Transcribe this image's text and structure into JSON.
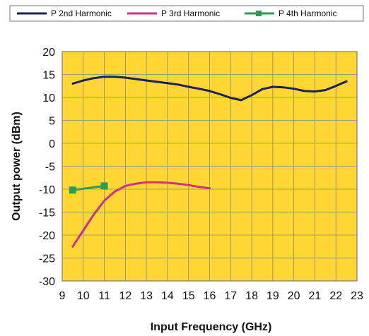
{
  "chart_data": {
    "type": "line",
    "title": "",
    "xlabel": "Input Frequency (GHz)",
    "ylabel": "Output power (dBm)",
    "xlim": [
      9,
      23
    ],
    "ylim": [
      -30,
      20
    ],
    "xticks": [
      9,
      10,
      11,
      12,
      13,
      14,
      15,
      16,
      17,
      18,
      19,
      20,
      21,
      22,
      23
    ],
    "yticks": [
      20,
      15,
      10,
      5,
      0,
      -5,
      -10,
      -15,
      -20,
      -25,
      -30
    ],
    "grid": true,
    "plot_background": "#FFD633",
    "legend_position": "top",
    "series": [
      {
        "name": "P 2nd Harmonic",
        "color": "#1a1f5e",
        "marker": "none",
        "x": [
          9.5,
          10,
          10.5,
          11,
          11.5,
          12,
          12.5,
          13,
          13.5,
          14,
          14.5,
          15,
          15.5,
          16,
          16.5,
          17,
          17.5,
          18,
          18.5,
          19,
          19.5,
          20,
          20.5,
          21,
          21.5,
          22,
          22.5
        ],
        "y": [
          13.0,
          13.7,
          14.2,
          14.5,
          14.5,
          14.3,
          14.0,
          13.7,
          13.4,
          13.1,
          12.8,
          12.3,
          11.9,
          11.4,
          10.7,
          9.9,
          9.4,
          10.5,
          11.8,
          12.3,
          12.2,
          11.9,
          11.4,
          11.3,
          11.6,
          12.5,
          13.5
        ]
      },
      {
        "name": "P 3rd Harmonic",
        "color": "#cc3388",
        "marker": "none",
        "x": [
          9.5,
          10,
          10.5,
          11,
          11.5,
          12,
          12.5,
          13,
          13.5,
          14,
          14.5,
          15,
          15.5,
          16
        ],
        "y": [
          -22.5,
          -19,
          -15.5,
          -12.5,
          -10.5,
          -9.3,
          -8.8,
          -8.5,
          -8.5,
          -8.6,
          -8.8,
          -9.1,
          -9.5,
          -9.8
        ]
      },
      {
        "name": "P 4th Harmonic",
        "color": "#2e9a55",
        "marker": "square",
        "x": [
          9.5,
          11
        ],
        "y": [
          -10.2,
          -9.3
        ]
      }
    ]
  }
}
